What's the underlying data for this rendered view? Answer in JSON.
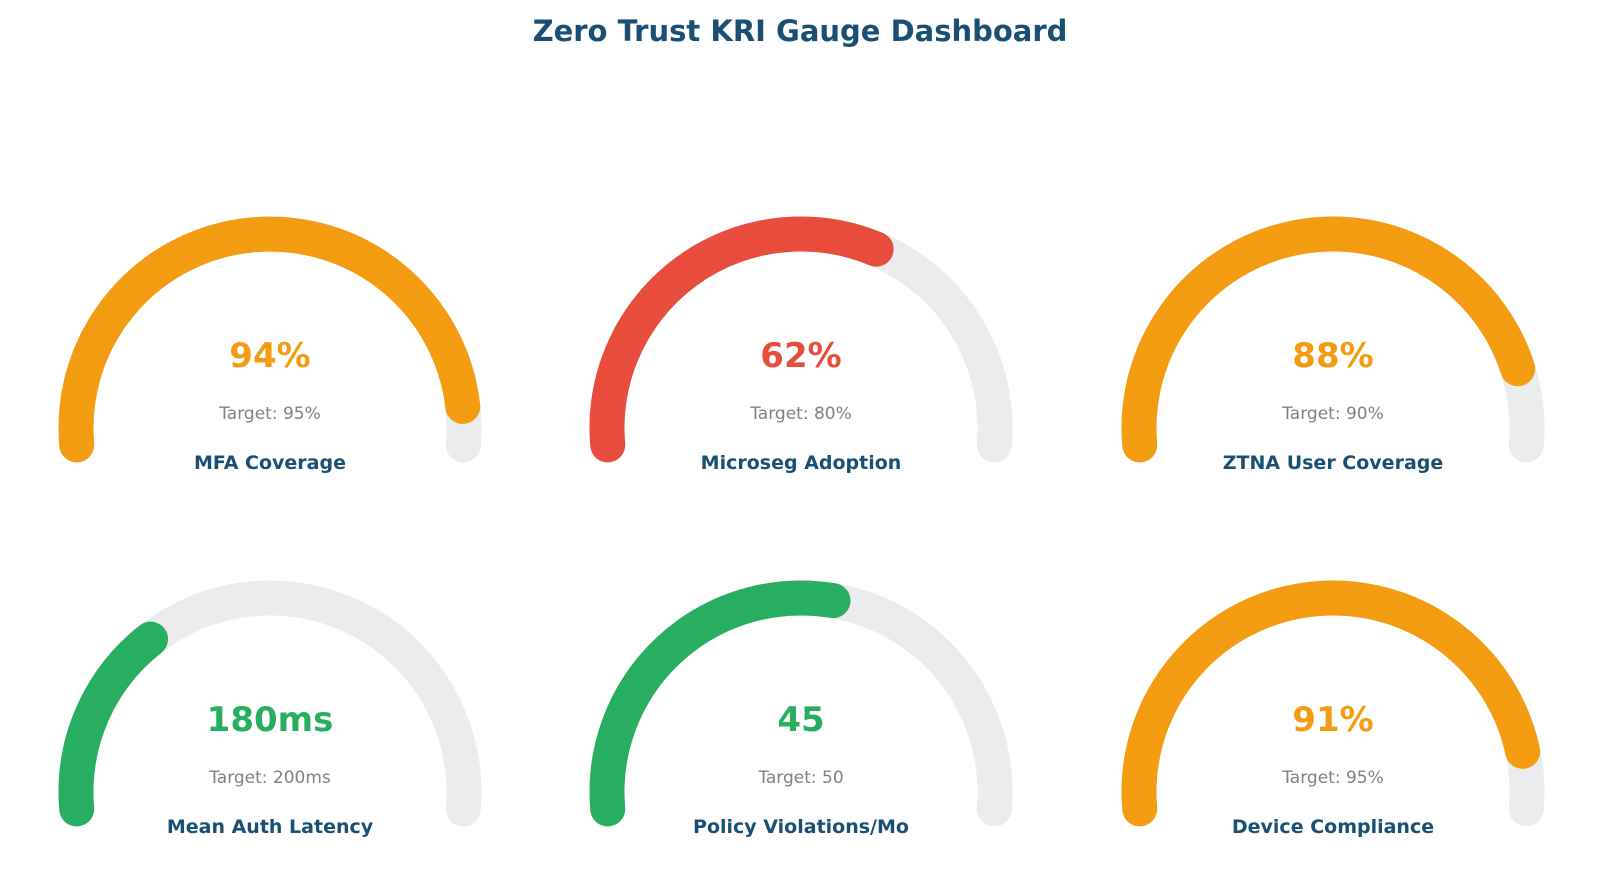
{
  "chart_data": {
    "type": "gauge",
    "title": "Zero Trust KRI Gauge Dashboard",
    "layout": {
      "rows": 2,
      "columns": 3
    },
    "track_color": "#ebecee",
    "label_color": "#1a4f73",
    "target_text_color": "#808080",
    "gauges": [
      {
        "label": "MFA Coverage",
        "value_text": "94%",
        "target_text": "Target: 95%",
        "fill_fraction": 0.94,
        "color": "#f39c12",
        "status": "warning"
      },
      {
        "label": "Microseg Adoption",
        "value_text": "62%",
        "target_text": "Target: 80%",
        "fill_fraction": 0.62,
        "color": "#e74c3c",
        "status": "critical"
      },
      {
        "label": "ZTNA User Coverage",
        "value_text": "88%",
        "target_text": "Target: 90%",
        "fill_fraction": 0.88,
        "color": "#f39c12",
        "status": "warning"
      },
      {
        "label": "Mean Auth Latency",
        "value_text": "180ms",
        "target_text": "Target: 200ms",
        "fill_fraction": 0.3,
        "color": "#27ae60",
        "status": "good"
      },
      {
        "label": "Policy Violations/Mo",
        "value_text": "45",
        "target_text": "Target: 50",
        "fill_fraction": 0.55,
        "color": "#27ae60",
        "status": "good"
      },
      {
        "label": "Device Compliance",
        "value_text": "91%",
        "target_text": "Target: 95%",
        "fill_fraction": 0.91,
        "color": "#f39c12",
        "status": "warning"
      }
    ]
  }
}
